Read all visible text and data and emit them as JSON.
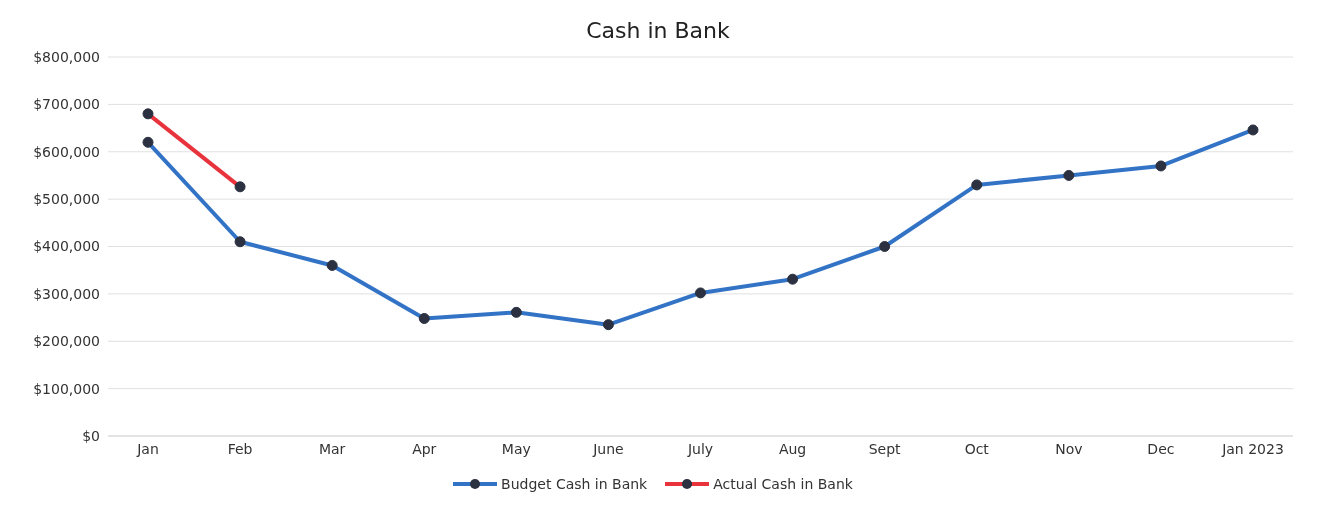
{
  "chart_data": {
    "type": "line",
    "title": "Cash in Bank",
    "categories": [
      "Jan",
      "Feb",
      "Mar",
      "Apr",
      "May",
      "June",
      "July",
      "Aug",
      "Sept",
      "Oct",
      "Nov",
      "Dec",
      "Jan 2023"
    ],
    "series": [
      {
        "name": "Budget Cash in Bank",
        "color": "#3273c6",
        "values": [
          620000,
          410000,
          360000,
          248000,
          261000,
          235000,
          302000,
          331000,
          400000,
          530000,
          550000,
          570000,
          646000
        ]
      },
      {
        "name": "Actual Cash in Bank",
        "color": "#e8323c",
        "values": [
          680000,
          526000,
          null,
          null,
          null,
          null,
          null,
          null,
          null,
          null,
          null,
          null,
          null
        ]
      }
    ],
    "ylim": [
      0,
      800000
    ],
    "yticks": [
      {
        "value": 0,
        "label": "$0"
      },
      {
        "value": 100000,
        "label": "$100,000"
      },
      {
        "value": 200000,
        "label": "$200,000"
      },
      {
        "value": 300000,
        "label": "$300,000"
      },
      {
        "value": 400000,
        "label": "$400,000"
      },
      {
        "value": 500000,
        "label": "$500,000"
      },
      {
        "value": 600000,
        "label": "$600,000"
      },
      {
        "value": 700000,
        "label": "$700,000"
      },
      {
        "value": 800000,
        "label": "$800,000"
      }
    ],
    "grid": "y",
    "legend": "bottom",
    "marker": "circle",
    "line_style": "solid"
  }
}
